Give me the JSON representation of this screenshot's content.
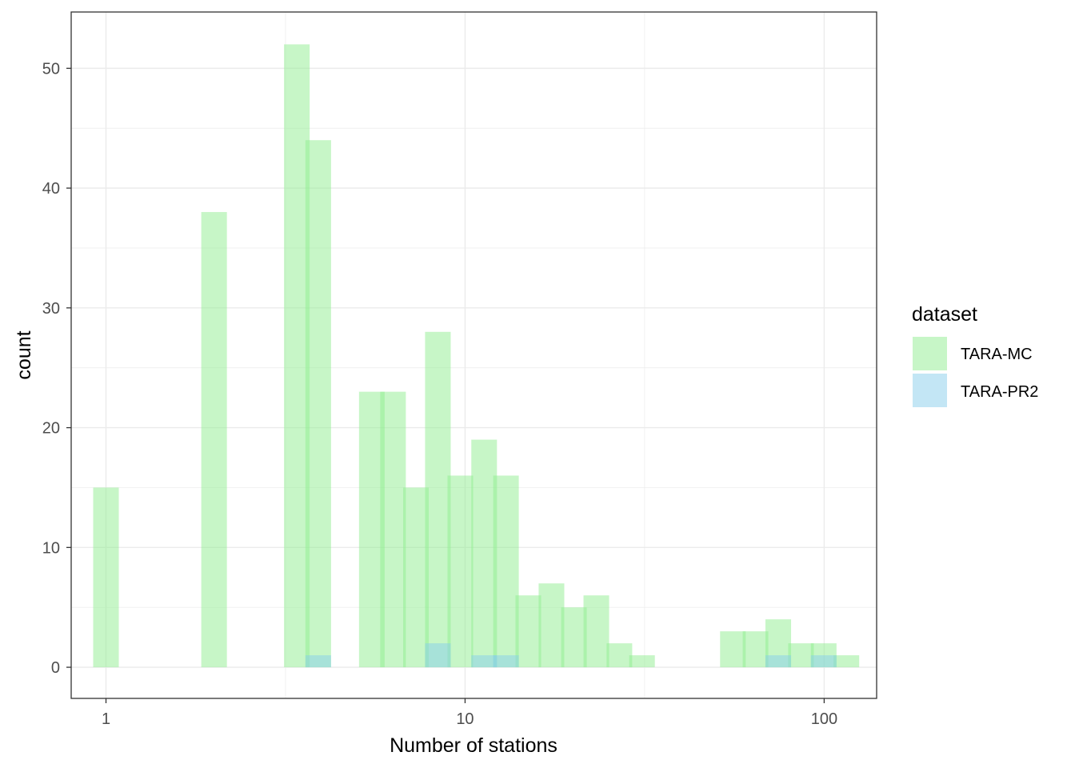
{
  "chart_data": {
    "type": "bar",
    "title": "",
    "xlabel": "Number of stations",
    "ylabel": "count",
    "x_scale": "log10",
    "xlim": [
      0.8,
      140
    ],
    "ylim": [
      -2.6,
      54.7
    ],
    "x_ticks": [
      1,
      10,
      100
    ],
    "x_tick_labels": [
      "1",
      "10",
      "100"
    ],
    "y_ticks": [
      0,
      10,
      20,
      30,
      40,
      50
    ],
    "y_tick_labels": [
      "0",
      "10",
      "20",
      "30",
      "40",
      "50"
    ],
    "grid": true,
    "legend": {
      "title": "dataset",
      "position": "right",
      "entries": [
        "TARA-MC",
        "TARA-PR2"
      ]
    },
    "bin_width_log10": 0.0714,
    "series": [
      {
        "name": "TARA-MC",
        "color": "#90EE90",
        "opacity": 0.5,
        "bins": [
          {
            "x": 1.0,
            "count": 15
          },
          {
            "x": 2.0,
            "count": 38
          },
          {
            "x": 3.4,
            "count": 52
          },
          {
            "x": 3.9,
            "count": 44
          },
          {
            "x": 5.5,
            "count": 23
          },
          {
            "x": 6.3,
            "count": 23
          },
          {
            "x": 7.3,
            "count": 15
          },
          {
            "x": 8.4,
            "count": 28
          },
          {
            "x": 9.7,
            "count": 16
          },
          {
            "x": 11.3,
            "count": 19
          },
          {
            "x": 13.0,
            "count": 16
          },
          {
            "x": 15.0,
            "count": 6
          },
          {
            "x": 17.4,
            "count": 7
          },
          {
            "x": 20.1,
            "count": 5
          },
          {
            "x": 23.2,
            "count": 6
          },
          {
            "x": 26.9,
            "count": 2
          },
          {
            "x": 31.1,
            "count": 1
          },
          {
            "x": 55.7,
            "count": 3
          },
          {
            "x": 64.4,
            "count": 3
          },
          {
            "x": 74.5,
            "count": 4
          },
          {
            "x": 86.2,
            "count": 2
          },
          {
            "x": 99.7,
            "count": 2
          },
          {
            "x": 115.3,
            "count": 1
          }
        ]
      },
      {
        "name": "TARA-PR2",
        "color": "#87CEEB",
        "opacity": 0.5,
        "bins": [
          {
            "x": 3.9,
            "count": 1
          },
          {
            "x": 8.4,
            "count": 2
          },
          {
            "x": 11.3,
            "count": 1
          },
          {
            "x": 13.0,
            "count": 1
          },
          {
            "x": 74.5,
            "count": 1
          },
          {
            "x": 99.7,
            "count": 1
          }
        ]
      }
    ]
  }
}
